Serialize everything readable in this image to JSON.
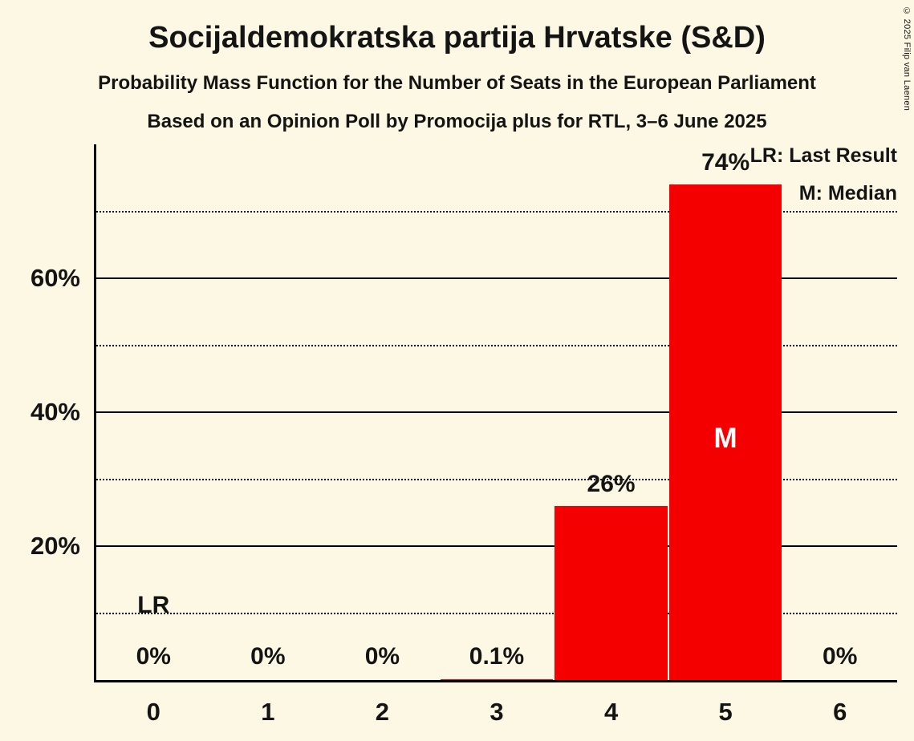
{
  "page": {
    "title": "Socijaldemokratska partija Hrvatske (S&D)",
    "subtitle1": "Probability Mass Function for the Number of Seats in the European Parliament",
    "subtitle2": "Based on an Opinion Poll by Promocija plus for RTL, 3–6 June 2025",
    "copyright": "© 2025 Filip van Laenen"
  },
  "legend": {
    "lr": "LR: Last Result",
    "m": "M: Median"
  },
  "colors": {
    "background": "#FCF8E3",
    "bar": "#F40000",
    "text": "#141414",
    "median_text": "#FFFFFF"
  },
  "chart_data": {
    "type": "bar",
    "title": "Socijaldemokratska partija Hrvatske (S&D)",
    "xlabel": "",
    "ylabel": "",
    "categories": [
      "0",
      "1",
      "2",
      "3",
      "4",
      "5",
      "6"
    ],
    "values": [
      0,
      0,
      0,
      0.1,
      26,
      74,
      0
    ],
    "value_labels": [
      "0%",
      "0%",
      "0%",
      "0.1%",
      "26%",
      "74%",
      "0%"
    ],
    "ylim": [
      0,
      80
    ],
    "solid_gridlines": [
      20,
      40,
      60
    ],
    "solid_gridline_labels": [
      "20%",
      "40%",
      "60%"
    ],
    "dotted_gridlines": [
      10,
      30,
      50,
      70
    ],
    "median_category": "5",
    "median_label": "M",
    "last_result_category": "0",
    "last_result_label": "LR",
    "legend_position": "top-right",
    "grid": "horizontal"
  }
}
